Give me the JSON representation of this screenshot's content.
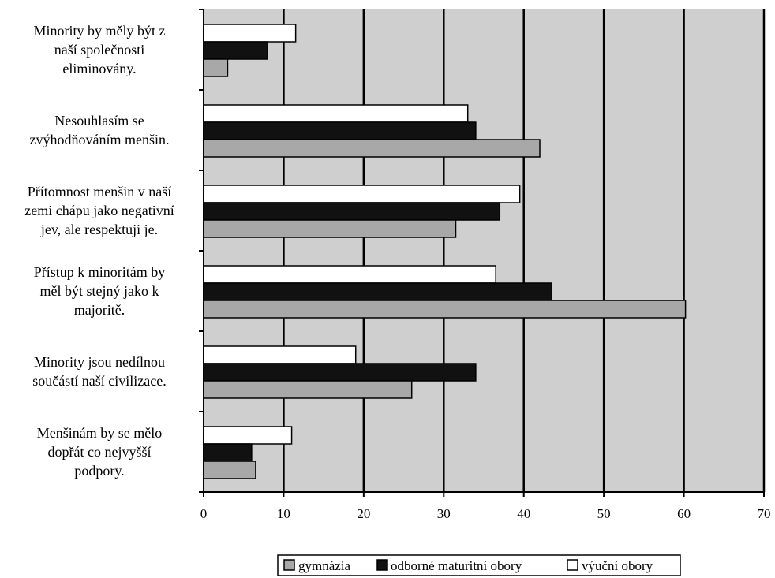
{
  "chart_data": {
    "type": "bar",
    "orientation": "horizontal",
    "categories": [
      [
        "Minority by měly být z",
        "naší společnosti",
        "eliminovány."
      ],
      [
        "Nesouhlasím se",
        "zvýhodňováním menšin."
      ],
      [
        "Přítomnost menšin v naší",
        "zemi chápu jako negativní",
        "jev, ale respektuji je."
      ],
      [
        "Přístup k minoritám by",
        "měl být stejný jako k",
        "majoritě."
      ],
      [
        "Minority jsou nedílnou",
        "součástí naší civilizace."
      ],
      [
        "Menšinám by se mělo",
        "dopřát co nejvyšší",
        "podpory."
      ]
    ],
    "series": [
      {
        "name": "gymnázia",
        "values": [
          3,
          42,
          31.5,
          60.2,
          26,
          6.5
        ]
      },
      {
        "name": "odborné maturitní obory",
        "values": [
          8,
          34,
          37,
          43.5,
          34,
          6
        ]
      },
      {
        "name": "výuční obory",
        "values": [
          11.5,
          33,
          39.5,
          36.5,
          19,
          11
        ]
      }
    ],
    "xlim": [
      0,
      70
    ],
    "xticks": [
      "0",
      "10",
      "20",
      "30",
      "40",
      "50",
      "60",
      "70"
    ],
    "grid": true,
    "legend_position": "bottom",
    "colors": {
      "plot_background": "#cfcfcf",
      "gymnazia": "#a8a8a8",
      "odborne": "#111111",
      "vycni": "#ffffff"
    }
  }
}
